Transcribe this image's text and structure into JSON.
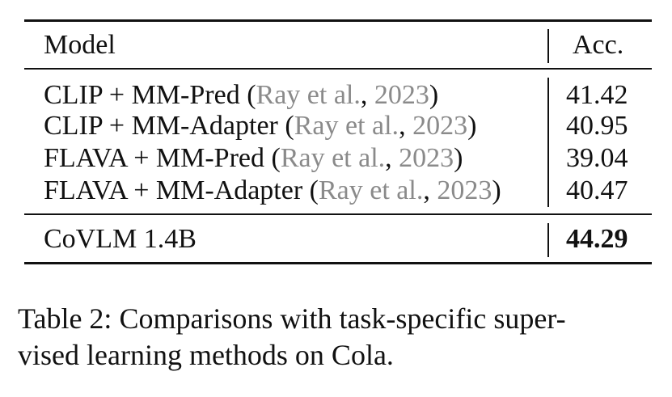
{
  "table": {
    "header": {
      "model": "Model",
      "acc": "Acc."
    },
    "rows": [
      {
        "model": "CLIP + MM-Pred",
        "cite_author": "Ray et al.",
        "cite_year": "2023",
        "acc": "41.42"
      },
      {
        "model": "CLIP + MM-Adapter",
        "cite_author": "Ray et al.",
        "cite_year": "2023",
        "acc": "40.95"
      },
      {
        "model": "FLAVA + MM-Pred",
        "cite_author": "Ray et al.",
        "cite_year": "2023",
        "acc": "39.04"
      },
      {
        "model": "FLAVA + MM-Adapter",
        "cite_author": "Ray et al.",
        "cite_year": "2023",
        "acc": "40.47"
      }
    ],
    "final_row": {
      "model": "CoVLM 1.4B",
      "acc": "44.29"
    }
  },
  "caption": {
    "line1": "Table 2:  Comparisons with task-specific super-",
    "line2": "vised learning methods on Cola."
  }
}
